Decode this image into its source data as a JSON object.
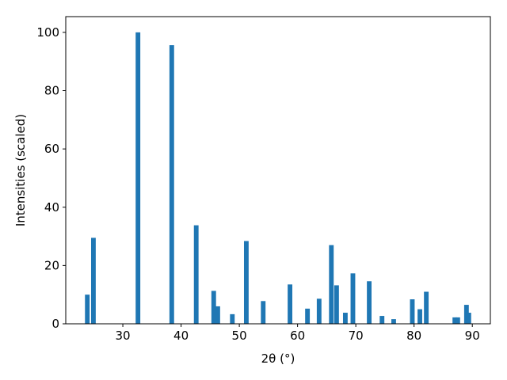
{
  "chart_data": {
    "type": "bar",
    "xlabel": "2θ (°)",
    "ylabel": "Intensities (scaled)",
    "x": [
      23.9,
      24.95,
      32.6,
      38.4,
      42.6,
      45.6,
      46.3,
      48.8,
      51.2,
      54.1,
      58.7,
      61.7,
      63.7,
      65.8,
      66.7,
      68.2,
      69.5,
      72.3,
      74.5,
      76.5,
      79.7,
      81.0,
      82.1,
      87.0,
      87.5,
      89.0,
      89.4
    ],
    "values": [
      10,
      29.5,
      100,
      95.6,
      33.8,
      11.3,
      6,
      3.3,
      28.4,
      7.8,
      13.5,
      5.2,
      8.6,
      27,
      13.2,
      3.8,
      17.3,
      14.6,
      2.7,
      1.6,
      8.4,
      5,
      11,
      2.2,
      2.2,
      6.5,
      3.8
    ],
    "color": "#1f77b4",
    "bar_width": 0.8,
    "xlim": [
      20.2,
      93.1
    ],
    "ylim": [
      0,
      105.4
    ],
    "xticks": [
      30,
      40,
      50,
      60,
      70,
      80,
      90
    ],
    "yticks": [
      0,
      20,
      40,
      60,
      80,
      100
    ]
  }
}
